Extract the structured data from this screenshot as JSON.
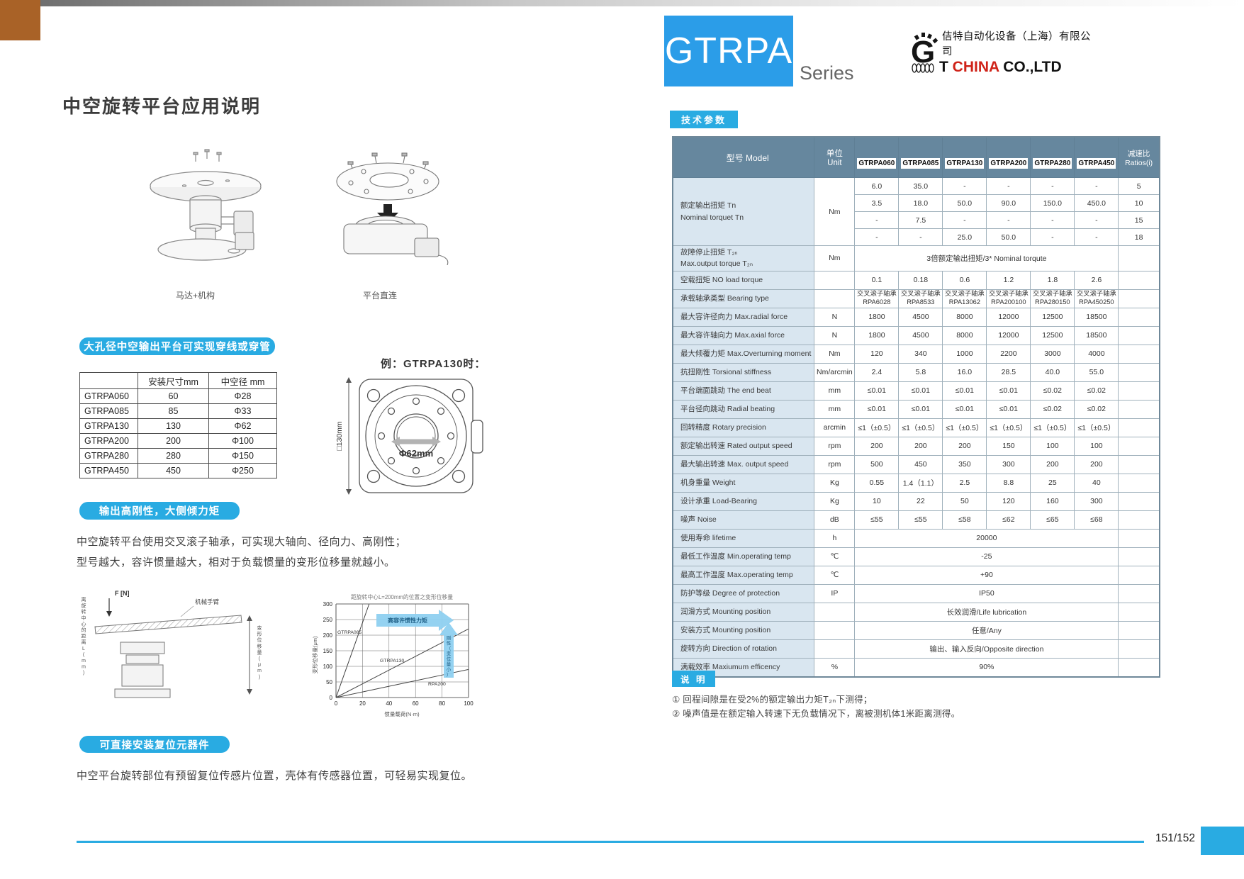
{
  "colors": {
    "accent": "#29abe2",
    "table_header": "#66879e",
    "label_bg": "#d9e6f0",
    "series_box": "#2b9de8",
    "logo_red": "#cf2218",
    "corner": "#a96227"
  },
  "header": {
    "series_code": "GTRPA",
    "series_word": "Series",
    "company_cn": "佶特自动化设备（上海）有限公司",
    "logo": {
      "g": "G",
      "t": "T",
      "china": "CHINA",
      "coltd": "CO.,LTD"
    }
  },
  "left": {
    "title": "中空旋转平台应用说明",
    "illus_labels": {
      "illus1": "马达+机构",
      "illus2": "平台直连"
    },
    "banners": {
      "b1": "大孔径中空输出平台可实现穿线或穿管",
      "b2": "输出高刚性，大侧倾力矩",
      "b3": "可直接安装复位元器件"
    },
    "bore_table": {
      "headers": [
        "",
        "安装尺寸mm",
        "中空径 mm"
      ],
      "rows": [
        [
          "GTRPA060",
          "60",
          "Φ28"
        ],
        [
          "GTRPA085",
          "85",
          "Φ33"
        ],
        [
          "GTRPA130",
          "130",
          "Φ62"
        ],
        [
          "GTRPA200",
          "200",
          "Φ100"
        ],
        [
          "GTRPA280",
          "280",
          "Φ150"
        ],
        [
          "GTRPA450",
          "450",
          "Φ250"
        ]
      ]
    },
    "example": {
      "caption": "例：GTRPA130时：",
      "side_dim": "□130mm",
      "bore_dim": "Φ62mm"
    },
    "para1": [
      "中空旋转平台使用交叉滚子轴承，可实现大轴向、径向力、高刚性；",
      "型号越大，容许惯量越大，相对于负载惯量的变形位移量就越小。"
    ],
    "mech": {
      "force": "F [N]",
      "arm": "机械手臂",
      "distance": "离旋转中心的距离L(mm)",
      "displacement": "变形位移量(μm)"
    },
    "para2": "中空平台旋转部位有预留复位传感片位置，壳体有传感器位置，可轻易实现复位。"
  },
  "chart_data": {
    "type": "line",
    "title": "距旋转中心L=200mm的位置之变形位移量",
    "xlabel": "惯量载荷(N·m)",
    "ylabel": "变形位移量(μm)",
    "xlim": [
      0,
      100
    ],
    "ylim": [
      0,
      300
    ],
    "xticks": [
      0,
      20,
      40,
      60,
      80,
      100
    ],
    "yticks": [
      0,
      50,
      100,
      150,
      200,
      250,
      300
    ],
    "grid": true,
    "legend_position": "on-curve",
    "series": [
      {
        "name": "GTRPA085",
        "x": [
          0,
          5,
          10,
          15,
          20,
          25
        ],
        "y": [
          0,
          60,
          120,
          180,
          240,
          300
        ]
      },
      {
        "name": "GTRPA130",
        "x": [
          0,
          20,
          40,
          60,
          80,
          100
        ],
        "y": [
          0,
          44,
          88,
          132,
          176,
          220
        ]
      },
      {
        "name": "RPA200",
        "x": [
          0,
          20,
          40,
          60,
          80,
          100
        ],
        "y": [
          0,
          18,
          36,
          54,
          72,
          90
        ]
      }
    ],
    "annotations": {
      "h_arrow": "高容许惯性力矩",
      "v_arrow": "刚性（变位量小）"
    }
  },
  "specs": {
    "badge": "技术参数",
    "header": {
      "model": "型号 Model",
      "unit": "单位\nUnit",
      "ratio": "减速比\nRatios(i)"
    },
    "models": [
      "GTRPA060",
      "GTRPA085",
      "GTRPA130",
      "GTRPA200",
      "GTRPA280",
      "GTRPA450"
    ],
    "nominal": {
      "label": "额定输出扭矩 Tn\nNominal torquet Tn",
      "unit": "Nm",
      "sub_rows": [
        {
          "values": [
            "6.0",
            "35.0",
            "-",
            "-",
            "-",
            "-"
          ],
          "ratio": "5"
        },
        {
          "values": [
            "3.5",
            "18.0",
            "50.0",
            "90.0",
            "150.0",
            "450.0"
          ],
          "ratio": "10"
        },
        {
          "values": [
            "-",
            "7.5",
            "-",
            "-",
            "-",
            "-"
          ],
          "ratio": "15"
        },
        {
          "values": [
            "-",
            "-",
            "25.0",
            "50.0",
            "-",
            "-"
          ],
          "ratio": "18"
        }
      ]
    },
    "rows": [
      {
        "label": "故障停止扭矩 T₂ₙ\nMax.output torque T₂ₙ",
        "unit": "Nm",
        "span": "3倍额定输出扭矩/3* Nominal torqute"
      },
      {
        "label": "空载扭矩 NO load torque",
        "unit": "",
        "values": [
          "0.1",
          "0.18",
          "0.6",
          "1.2",
          "1.8",
          "2.6"
        ]
      },
      {
        "label": "承载轴承类型 Bearing type",
        "unit": "",
        "values": [
          "交叉滚子轴承\nRPA6028",
          "交叉滚子轴承\nRPA8533",
          "交叉滚子轴承\nRPA13062",
          "交叉滚子轴承\nRPA200100",
          "交叉滚子轴承\nRPA280150",
          "交叉滚子轴承\nRPA450250"
        ]
      },
      {
        "label": "最大容许径向力 Max.radial force",
        "unit": "N",
        "values": [
          "1800",
          "4500",
          "8000",
          "12000",
          "12500",
          "18500"
        ]
      },
      {
        "label": "最大容许轴向力 Max.axial force",
        "unit": "N",
        "values": [
          "1800",
          "4500",
          "8000",
          "12000",
          "12500",
          "18500"
        ]
      },
      {
        "label": "最大倾覆力矩 Max.Overturning moment",
        "unit": "Nm",
        "values": [
          "120",
          "340",
          "1000",
          "2200",
          "3000",
          "4000"
        ]
      },
      {
        "label": "抗扭刚性 Torsional stiffness",
        "unit": "Nm/arcmin",
        "values": [
          "2.4",
          "5.8",
          "16.0",
          "28.5",
          "40.0",
          "55.0"
        ]
      },
      {
        "label": "平台端面跳动 The end beat",
        "unit": "mm",
        "values": [
          "≤0.01",
          "≤0.01",
          "≤0.01",
          "≤0.01",
          "≤0.02",
          "≤0.02"
        ]
      },
      {
        "label": "平台径向跳动 Radial beating",
        "unit": "mm",
        "values": [
          "≤0.01",
          "≤0.01",
          "≤0.01",
          "≤0.01",
          "≤0.02",
          "≤0.02"
        ]
      },
      {
        "label": "回转精度 Rotary precision",
        "unit": "arcmin",
        "values": [
          "≤1（±0.5）",
          "≤1（±0.5）",
          "≤1（±0.5）",
          "≤1（±0.5）",
          "≤1（±0.5）",
          "≤1（±0.5）"
        ]
      },
      {
        "label": "额定输出转速 Rated output speed",
        "unit": "rpm",
        "values": [
          "200",
          "200",
          "200",
          "150",
          "100",
          "100"
        ]
      },
      {
        "label": "最大输出转速 Max. output speed",
        "unit": "rpm",
        "values": [
          "500",
          "450",
          "350",
          "300",
          "200",
          "200"
        ]
      },
      {
        "label": "机身重量 Weight",
        "unit": "Kg",
        "values": [
          "0.55",
          "1.4（1.1）",
          "2.5",
          "8.8",
          "25",
          "40"
        ]
      },
      {
        "label": "设计承重 Load-Bearing",
        "unit": "Kg",
        "values": [
          "10",
          "22",
          "50",
          "120",
          "160",
          "300"
        ]
      },
      {
        "label": "噪声 Noise",
        "unit": "dB",
        "values": [
          "≤55",
          "≤55",
          "≤58",
          "≤62",
          "≤65",
          "≤68"
        ]
      },
      {
        "label": "使用寿命 lifetime",
        "unit": "h",
        "span": "20000"
      },
      {
        "label": "最低工作温度 Min.operating temp",
        "unit": "℃",
        "span": "-25"
      },
      {
        "label": "最高工作温度 Max.operating temp",
        "unit": "℃",
        "span": "+90"
      },
      {
        "label": "防护等级 Degree of protection",
        "unit": "IP",
        "span": "IP50"
      },
      {
        "label": "润滑方式 Mounting position",
        "unit": "",
        "span": "长效润滑/Life lubrication"
      },
      {
        "label": "安装方式 Mounting position",
        "unit": "",
        "span": "任意/Any"
      },
      {
        "label": "旋转方向 Direction of rotation",
        "unit": "",
        "span": "输出、输入反向/Opposite direction"
      },
      {
        "label": "满载效率 Maxiumum efficency",
        "unit": "%",
        "span": "90%"
      }
    ]
  },
  "notes": {
    "badge": "说 明",
    "items": [
      "① 回程间隙是在受2%的额定输出力矩T₂ₙ下测得；",
      "② 噪声值是在额定输入转速下无负载情况下，离被测机体1米距离测得。"
    ]
  },
  "footer": {
    "page": "151/152"
  }
}
